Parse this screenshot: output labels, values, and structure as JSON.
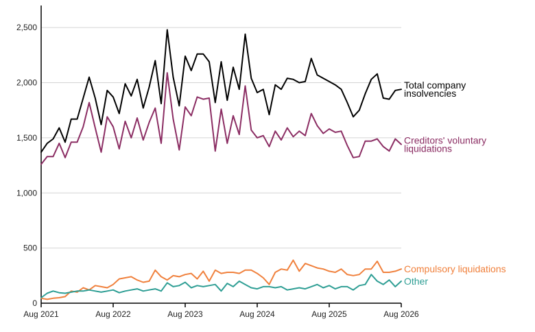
{
  "chart_data": {
    "type": "line",
    "title": "",
    "xlabel": "",
    "ylabel": "",
    "ylim": [
      0,
      2700
    ],
    "yticks": [
      0,
      500,
      1000,
      1500,
      2000,
      2500
    ],
    "ytick_labels": [
      "0",
      "500",
      "1,000",
      "1,500",
      "2,000",
      "2,500"
    ],
    "xticks": [
      "Aug 2021",
      "Aug 2022",
      "Aug 2023",
      "Aug 2024",
      "Aug 2025",
      "Aug 2026"
    ],
    "x_start": "Aug 2021",
    "x_end": "Aug 2026",
    "grid": "horizontal",
    "legend": "inline labels at line ends",
    "series": [
      {
        "name": "Total company insolvencies",
        "label_lines": [
          "Total company",
          "insolvencies"
        ],
        "color": "#000000",
        "values": [
          1370,
          1450,
          1490,
          1590,
          1460,
          1670,
          1670,
          1860,
          2050,
          1860,
          1620,
          1930,
          1870,
          1720,
          1990,
          1880,
          2030,
          1770,
          1960,
          2200,
          1810,
          2480,
          2050,
          1790,
          2240,
          2110,
          2260,
          2260,
          2190,
          1820,
          2190,
          1840,
          2140,
          1940,
          2440,
          2040,
          1910,
          1940,
          1710,
          1980,
          1940,
          2040,
          2030,
          2000,
          2010,
          2220,
          2070,
          2040,
          2010,
          1980,
          1940,
          1820,
          1690,
          1750,
          1900,
          2030,
          2080,
          1860,
          1850,
          1930,
          1940
        ]
      },
      {
        "name": "Creditors' voluntary liquidations",
        "label_lines": [
          "Creditors' voluntary",
          "liquidations"
        ],
        "color": "#8b2d63",
        "values": [
          1260,
          1330,
          1330,
          1450,
          1320,
          1460,
          1460,
          1600,
          1820,
          1590,
          1370,
          1690,
          1600,
          1400,
          1650,
          1500,
          1680,
          1480,
          1640,
          1770,
          1450,
          2090,
          1670,
          1390,
          1780,
          1700,
          1870,
          1850,
          1860,
          1380,
          1760,
          1450,
          1700,
          1530,
          1970,
          1570,
          1500,
          1520,
          1420,
          1560,
          1480,
          1590,
          1510,
          1560,
          1520,
          1720,
          1610,
          1540,
          1580,
          1550,
          1560,
          1430,
          1320,
          1330,
          1470,
          1470,
          1490,
          1420,
          1380,
          1490,
          1440
        ]
      },
      {
        "name": "Compulsory liquidations",
        "label_lines": [
          "Compulsory liquidations"
        ],
        "color": "#f0803c",
        "values": [
          45,
          35,
          45,
          50,
          60,
          110,
          100,
          140,
          120,
          160,
          150,
          140,
          170,
          220,
          230,
          240,
          210,
          190,
          200,
          300,
          240,
          210,
          250,
          240,
          260,
          270,
          220,
          290,
          200,
          300,
          270,
          280,
          280,
          270,
          300,
          300,
          270,
          230,
          170,
          280,
          310,
          300,
          390,
          290,
          360,
          340,
          320,
          310,
          290,
          280,
          310,
          260,
          250,
          260,
          310,
          310,
          380,
          280,
          280,
          290,
          310
        ]
      },
      {
        "name": "Other",
        "label_lines": [
          "Other"
        ],
        "color": "#2e9e94",
        "values": [
          50,
          90,
          110,
          95,
          90,
          100,
          110,
          110,
          120,
          110,
          100,
          110,
          120,
          95,
          110,
          120,
          130,
          110,
          120,
          130,
          110,
          185,
          150,
          160,
          190,
          140,
          160,
          150,
          160,
          170,
          110,
          180,
          150,
          200,
          170,
          140,
          130,
          150,
          150,
          140,
          150,
          120,
          130,
          140,
          130,
          150,
          170,
          140,
          160,
          130,
          150,
          150,
          120,
          160,
          170,
          260,
          200,
          170,
          210,
          150,
          200
        ]
      }
    ]
  }
}
